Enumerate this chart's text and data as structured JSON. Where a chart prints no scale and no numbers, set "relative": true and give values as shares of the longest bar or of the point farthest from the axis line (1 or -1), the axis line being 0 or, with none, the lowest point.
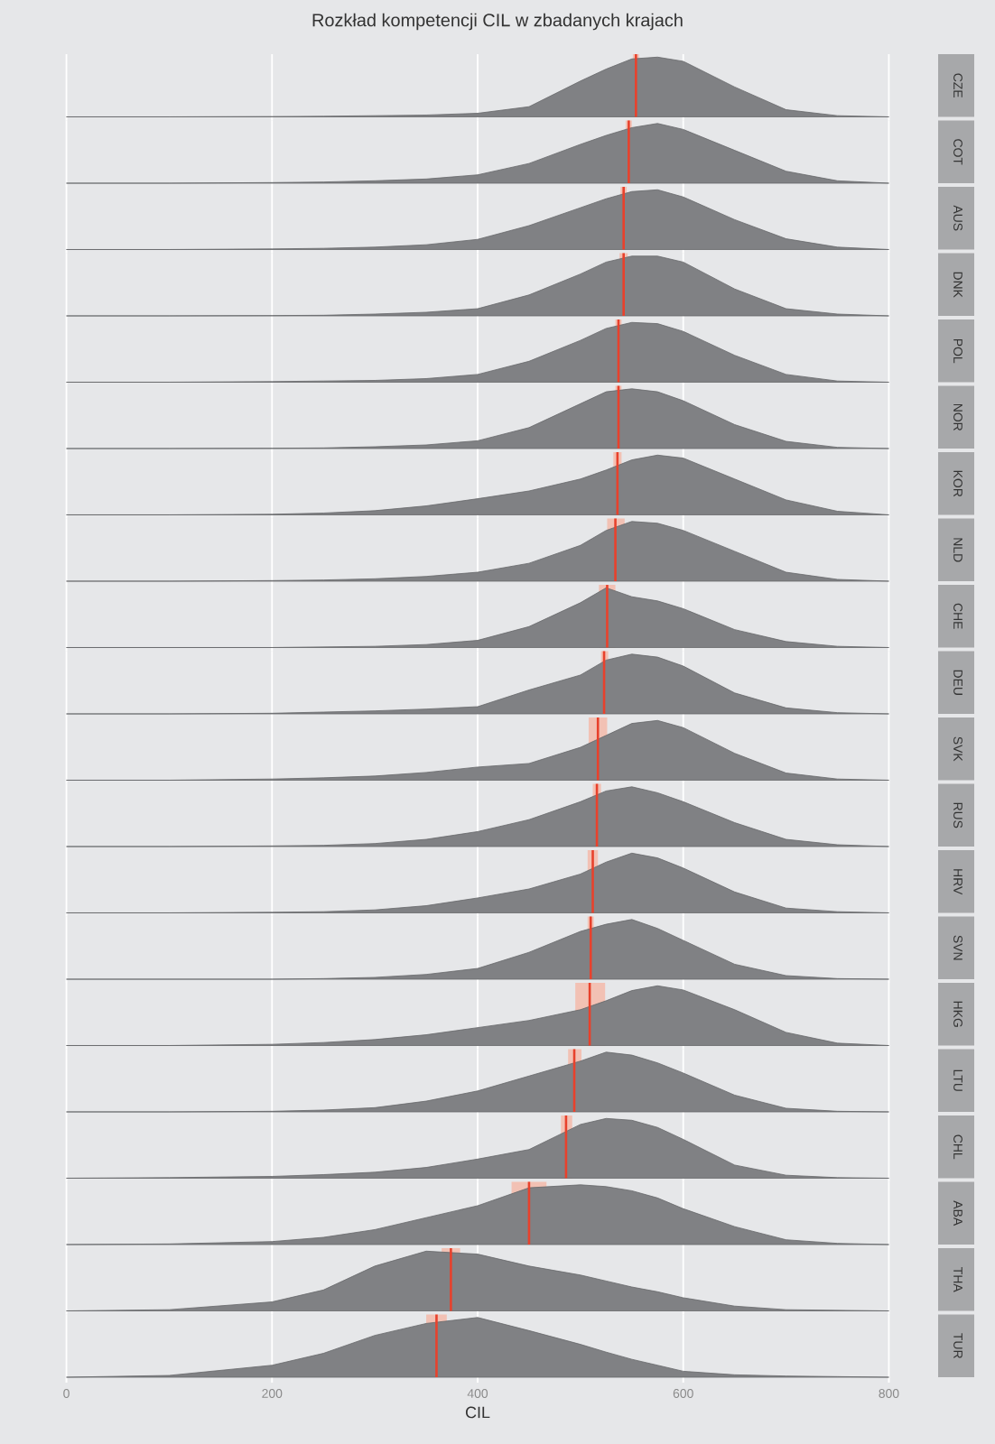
{
  "chart_data": [
    {
      "type": "other",
      "title": "Rozkład kompetencji CIL w zbadanych krajach"
    },
    {
      "type": "area",
      "annotations": [
        "CZE"
      ],
      "relative": true,
      "color": "#808184",
      "grid": "x",
      "tick_labels": false,
      "xlim": [
        -40,
        840
      ],
      "xticks": [
        0,
        200,
        400,
        600,
        800
      ],
      "x": [
        0,
        100,
        200,
        250,
        300,
        350,
        400,
        450,
        500,
        525,
        550,
        575,
        600,
        650,
        700,
        750,
        800
      ],
      "values": [
        0,
        0,
        0.005,
        0.01,
        0.02,
        0.03,
        0.06,
        0.17,
        0.6,
        0.8,
        0.97,
        1,
        0.93,
        0.5,
        0.12,
        0.02,
        0
      ],
      "ref_lines": [
        {
          "axis": "x",
          "value": 554,
          "color": "#e8412c"
        }
      ],
      "bands": [
        {
          "axis": "x",
          "from": 551,
          "to": 557,
          "color": "#f2c1b4"
        }
      ]
    },
    {
      "type": "area",
      "annotations": [
        "COT"
      ],
      "relative": true,
      "color": "#808184",
      "grid": "x",
      "tick_labels": false,
      "xlim": [
        -40,
        840
      ],
      "xticks": [
        0,
        200,
        400,
        600,
        800
      ],
      "x": [
        0,
        100,
        200,
        250,
        300,
        350,
        400,
        450,
        500,
        525,
        550,
        575,
        600,
        650,
        700,
        750,
        800
      ],
      "values": [
        0,
        0,
        0.01,
        0.02,
        0.04,
        0.07,
        0.14,
        0.33,
        0.65,
        0.8,
        0.93,
        1,
        0.9,
        0.55,
        0.2,
        0.04,
        0
      ],
      "ref_lines": [
        {
          "axis": "x",
          "value": 547,
          "color": "#e8412c"
        }
      ],
      "bands": [
        {
          "axis": "x",
          "from": 544,
          "to": 550,
          "color": "#f2c1b4"
        }
      ]
    },
    {
      "type": "area",
      "annotations": [
        "AUS"
      ],
      "relative": true,
      "color": "#808184",
      "grid": "x",
      "tick_labels": false,
      "xlim": [
        -40,
        840
      ],
      "xticks": [
        0,
        200,
        400,
        600,
        800
      ],
      "x": [
        0,
        100,
        200,
        250,
        300,
        350,
        400,
        450,
        500,
        525,
        550,
        575,
        600,
        650,
        700,
        750,
        800
      ],
      "values": [
        0,
        0,
        0.01,
        0.02,
        0.04,
        0.08,
        0.17,
        0.4,
        0.7,
        0.85,
        0.97,
        1,
        0.88,
        0.5,
        0.18,
        0.04,
        0
      ],
      "ref_lines": [
        {
          "axis": "x",
          "value": 542,
          "color": "#e8412c"
        }
      ],
      "bands": [
        {
          "axis": "x",
          "from": 539,
          "to": 545,
          "color": "#f2c1b4"
        }
      ]
    },
    {
      "type": "area",
      "annotations": [
        "DNK"
      ],
      "relative": true,
      "color": "#808184",
      "grid": "x",
      "tick_labels": false,
      "xlim": [
        -40,
        840
      ],
      "xticks": [
        0,
        200,
        400,
        600,
        800
      ],
      "x": [
        0,
        100,
        200,
        250,
        300,
        350,
        400,
        450,
        500,
        525,
        550,
        575,
        600,
        650,
        700,
        750,
        800
      ],
      "values": [
        0,
        0,
        0.005,
        0.01,
        0.03,
        0.06,
        0.12,
        0.35,
        0.7,
        0.9,
        1,
        1,
        0.9,
        0.45,
        0.12,
        0.03,
        0
      ],
      "ref_lines": [
        {
          "axis": "x",
          "value": 542,
          "color": "#e8412c"
        }
      ],
      "bands": [
        {
          "axis": "x",
          "from": 538,
          "to": 546,
          "color": "#f2c1b4"
        }
      ]
    },
    {
      "type": "area",
      "annotations": [
        "POL"
      ],
      "relative": true,
      "color": "#808184",
      "grid": "x",
      "tick_labels": false,
      "xlim": [
        -40,
        840
      ],
      "xticks": [
        0,
        200,
        400,
        600,
        800
      ],
      "x": [
        0,
        100,
        200,
        250,
        300,
        350,
        400,
        450,
        500,
        525,
        550,
        575,
        600,
        650,
        700,
        750,
        800
      ],
      "values": [
        0,
        0,
        0.01,
        0.02,
        0.03,
        0.06,
        0.13,
        0.35,
        0.7,
        0.9,
        1,
        0.98,
        0.85,
        0.45,
        0.13,
        0.02,
        0
      ],
      "ref_lines": [
        {
          "axis": "x",
          "value": 537,
          "color": "#e8412c"
        }
      ],
      "bands": [
        {
          "axis": "x",
          "from": 534,
          "to": 540,
          "color": "#f2c1b4"
        }
      ]
    },
    {
      "type": "area",
      "annotations": [
        "NOR"
      ],
      "relative": true,
      "color": "#808184",
      "grid": "x",
      "tick_labels": false,
      "xlim": [
        -40,
        840
      ],
      "xticks": [
        0,
        200,
        400,
        600,
        800
      ],
      "x": [
        0,
        100,
        200,
        250,
        300,
        350,
        400,
        450,
        500,
        525,
        550,
        575,
        600,
        650,
        700,
        750,
        800
      ],
      "values": [
        0,
        0,
        0.005,
        0.01,
        0.03,
        0.06,
        0.13,
        0.35,
        0.75,
        0.95,
        1,
        0.95,
        0.8,
        0.4,
        0.12,
        0.02,
        0
      ],
      "ref_lines": [
        {
          "axis": "x",
          "value": 537,
          "color": "#e8412c"
        }
      ],
      "bands": [
        {
          "axis": "x",
          "from": 534,
          "to": 540,
          "color": "#f2c1b4"
        }
      ]
    },
    {
      "type": "area",
      "annotations": [
        "KOR"
      ],
      "relative": true,
      "color": "#808184",
      "grid": "x",
      "tick_labels": false,
      "xlim": [
        -40,
        840
      ],
      "xticks": [
        0,
        200,
        400,
        600,
        800
      ],
      "x": [
        0,
        100,
        200,
        250,
        300,
        350,
        400,
        450,
        500,
        525,
        550,
        575,
        600,
        650,
        700,
        750,
        800
      ],
      "values": [
        0,
        0,
        0.01,
        0.03,
        0.07,
        0.15,
        0.27,
        0.4,
        0.6,
        0.75,
        0.92,
        1,
        0.95,
        0.6,
        0.25,
        0.06,
        0
      ],
      "ref_lines": [
        {
          "axis": "x",
          "value": 536,
          "color": "#e8412c"
        }
      ],
      "bands": [
        {
          "axis": "x",
          "from": 532,
          "to": 540,
          "color": "#f2c1b4"
        }
      ]
    },
    {
      "type": "area",
      "annotations": [
        "NLD"
      ],
      "relative": true,
      "color": "#808184",
      "grid": "x",
      "tick_labels": false,
      "xlim": [
        -40,
        840
      ],
      "xticks": [
        0,
        200,
        400,
        600,
        800
      ],
      "x": [
        0,
        100,
        200,
        250,
        300,
        350,
        400,
        450,
        500,
        525,
        550,
        575,
        600,
        650,
        700,
        750,
        800
      ],
      "values": [
        0,
        0,
        0.01,
        0.02,
        0.04,
        0.08,
        0.15,
        0.3,
        0.6,
        0.85,
        1,
        0.97,
        0.85,
        0.5,
        0.15,
        0.03,
        0
      ],
      "ref_lines": [
        {
          "axis": "x",
          "value": 534,
          "color": "#e8412c"
        }
      ],
      "bands": [
        {
          "axis": "x",
          "from": 526,
          "to": 543,
          "color": "#f2c1b4"
        }
      ]
    },
    {
      "type": "area",
      "annotations": [
        "CHE"
      ],
      "relative": true,
      "color": "#808184",
      "grid": "x",
      "tick_labels": false,
      "xlim": [
        -40,
        840
      ],
      "xticks": [
        0,
        200,
        400,
        600,
        800
      ],
      "x": [
        0,
        100,
        200,
        250,
        300,
        350,
        400,
        450,
        500,
        525,
        550,
        575,
        600,
        650,
        700,
        750,
        800
      ],
      "values": [
        0,
        0,
        0,
        0.01,
        0.02,
        0.05,
        0.12,
        0.35,
        0.75,
        1,
        0.85,
        0.78,
        0.65,
        0.3,
        0.1,
        0.02,
        0
      ],
      "ref_lines": [
        {
          "axis": "x",
          "value": 526,
          "color": "#e8412c"
        }
      ],
      "bands": [
        {
          "axis": "x",
          "from": 518,
          "to": 534,
          "color": "#f2c1b4"
        }
      ]
    },
    {
      "type": "area",
      "annotations": [
        "DEU"
      ],
      "relative": true,
      "color": "#808184",
      "grid": "x",
      "tick_labels": false,
      "xlim": [
        -40,
        840
      ],
      "xticks": [
        0,
        200,
        400,
        600,
        800
      ],
      "x": [
        0,
        100,
        200,
        250,
        300,
        350,
        400,
        450,
        500,
        525,
        550,
        575,
        600,
        650,
        700,
        750,
        800
      ],
      "values": [
        0,
        0,
        0.01,
        0.03,
        0.05,
        0.08,
        0.12,
        0.4,
        0.65,
        0.9,
        1,
        0.95,
        0.8,
        0.35,
        0.1,
        0.02,
        0
      ],
      "ref_lines": [
        {
          "axis": "x",
          "value": 523,
          "color": "#e8412c"
        }
      ],
      "bands": [
        {
          "axis": "x",
          "from": 520,
          "to": 527,
          "color": "#f2c1b4"
        }
      ]
    },
    {
      "type": "area",
      "annotations": [
        "SVK"
      ],
      "relative": true,
      "color": "#808184",
      "grid": "x",
      "tick_labels": false,
      "xlim": [
        -40,
        840
      ],
      "xticks": [
        0,
        200,
        400,
        600,
        800
      ],
      "x": [
        0,
        100,
        200,
        250,
        300,
        350,
        400,
        450,
        500,
        525,
        550,
        575,
        600,
        650,
        700,
        750,
        800
      ],
      "values": [
        0,
        0,
        0.02,
        0.04,
        0.07,
        0.13,
        0.22,
        0.28,
        0.55,
        0.75,
        0.95,
        1,
        0.88,
        0.45,
        0.12,
        0.02,
        0
      ],
      "ref_lines": [
        {
          "axis": "x",
          "value": 517,
          "color": "#e8412c"
        }
      ],
      "bands": [
        {
          "axis": "x",
          "from": 508,
          "to": 526,
          "color": "#f2c1b4"
        }
      ]
    },
    {
      "type": "area",
      "annotations": [
        "RUS"
      ],
      "relative": true,
      "color": "#808184",
      "grid": "x",
      "tick_labels": false,
      "xlim": [
        -40,
        840
      ],
      "xticks": [
        0,
        200,
        400,
        600,
        800
      ],
      "x": [
        0,
        100,
        200,
        250,
        300,
        350,
        400,
        450,
        500,
        525,
        550,
        575,
        600,
        650,
        700,
        750,
        800
      ],
      "values": [
        0,
        0,
        0.01,
        0.02,
        0.05,
        0.12,
        0.25,
        0.45,
        0.75,
        0.93,
        1,
        0.9,
        0.75,
        0.4,
        0.12,
        0.03,
        0
      ],
      "ref_lines": [
        {
          "axis": "x",
          "value": 516,
          "color": "#e8412c"
        }
      ],
      "bands": [
        {
          "axis": "x",
          "from": 512,
          "to": 520,
          "color": "#f2c1b4"
        }
      ]
    },
    {
      "type": "area",
      "annotations": [
        "HRV"
      ],
      "relative": true,
      "color": "#808184",
      "grid": "x",
      "tick_labels": false,
      "xlim": [
        -40,
        840
      ],
      "xticks": [
        0,
        200,
        400,
        600,
        800
      ],
      "x": [
        0,
        100,
        200,
        250,
        300,
        350,
        400,
        450,
        500,
        525,
        550,
        575,
        600,
        650,
        700,
        750,
        800
      ],
      "values": [
        0,
        0,
        0.01,
        0.02,
        0.05,
        0.12,
        0.25,
        0.4,
        0.65,
        0.85,
        1,
        0.92,
        0.75,
        0.35,
        0.08,
        0.02,
        0
      ],
      "ref_lines": [
        {
          "axis": "x",
          "value": 512,
          "color": "#e8412c"
        }
      ],
      "bands": [
        {
          "axis": "x",
          "from": 507,
          "to": 517,
          "color": "#f2c1b4"
        }
      ]
    },
    {
      "type": "area",
      "annotations": [
        "SVN"
      ],
      "relative": true,
      "color": "#808184",
      "grid": "x",
      "tick_labels": false,
      "xlim": [
        -40,
        840
      ],
      "xticks": [
        0,
        200,
        400,
        600,
        800
      ],
      "x": [
        0,
        100,
        200,
        250,
        300,
        350,
        400,
        450,
        500,
        525,
        550,
        575,
        600,
        650,
        700,
        750,
        800
      ],
      "values": [
        0,
        0,
        0,
        0.01,
        0.03,
        0.08,
        0.18,
        0.45,
        0.8,
        0.92,
        1,
        0.85,
        0.65,
        0.25,
        0.06,
        0.01,
        0
      ],
      "ref_lines": [
        {
          "axis": "x",
          "value": 510,
          "color": "#e8412c"
        }
      ],
      "bands": [
        {
          "axis": "x",
          "from": 507,
          "to": 513,
          "color": "#f2c1b4"
        }
      ]
    },
    {
      "type": "area",
      "annotations": [
        "HKG"
      ],
      "relative": true,
      "color": "#808184",
      "grid": "x",
      "tick_labels": false,
      "xlim": [
        -40,
        840
      ],
      "xticks": [
        0,
        200,
        400,
        600,
        800
      ],
      "x": [
        0,
        100,
        200,
        250,
        300,
        350,
        400,
        450,
        500,
        525,
        550,
        575,
        600,
        650,
        700,
        750,
        800
      ],
      "values": [
        0,
        0,
        0.02,
        0.05,
        0.1,
        0.18,
        0.3,
        0.42,
        0.6,
        0.75,
        0.92,
        1,
        0.93,
        0.6,
        0.22,
        0.04,
        0
      ],
      "ref_lines": [
        {
          "axis": "x",
          "value": 509,
          "color": "#e8412c"
        }
      ],
      "bands": [
        {
          "axis": "x",
          "from": 495,
          "to": 524,
          "color": "#f2c1b4"
        }
      ]
    },
    {
      "type": "area",
      "annotations": [
        "LTU"
      ],
      "relative": true,
      "color": "#808184",
      "grid": "x",
      "tick_labels": false,
      "xlim": [
        -40,
        840
      ],
      "xticks": [
        0,
        200,
        400,
        600,
        800
      ],
      "x": [
        0,
        100,
        200,
        250,
        300,
        350,
        400,
        450,
        500,
        525,
        550,
        575,
        600,
        650,
        700,
        750,
        800
      ],
      "values": [
        0,
        0,
        0.01,
        0.03,
        0.07,
        0.18,
        0.35,
        0.6,
        0.85,
        1,
        0.95,
        0.82,
        0.65,
        0.28,
        0.06,
        0.01,
        0
      ],
      "ref_lines": [
        {
          "axis": "x",
          "value": 494,
          "color": "#e8412c"
        }
      ],
      "bands": [
        {
          "axis": "x",
          "from": 488,
          "to": 501,
          "color": "#f2c1b4"
        }
      ]
    },
    {
      "type": "area",
      "annotations": [
        "CHL"
      ],
      "relative": true,
      "color": "#808184",
      "grid": "x",
      "tick_labels": false,
      "xlim": [
        -40,
        840
      ],
      "xticks": [
        0,
        200,
        400,
        600,
        800
      ],
      "x": [
        0,
        100,
        200,
        250,
        300,
        350,
        400,
        450,
        500,
        525,
        550,
        575,
        600,
        650,
        700,
        750,
        800
      ],
      "values": [
        0,
        0.01,
        0.03,
        0.06,
        0.1,
        0.18,
        0.32,
        0.48,
        0.9,
        1,
        0.97,
        0.85,
        0.65,
        0.22,
        0.05,
        0.01,
        0
      ],
      "ref_lines": [
        {
          "axis": "x",
          "value": 486,
          "color": "#e8412c"
        }
      ],
      "bands": [
        {
          "axis": "x",
          "from": 481,
          "to": 492,
          "color": "#f2c1b4"
        }
      ]
    },
    {
      "type": "area",
      "annotations": [
        "ABA"
      ],
      "relative": true,
      "color": "#808184",
      "grid": "x",
      "tick_labels": false,
      "xlim": [
        -40,
        840
      ],
      "xticks": [
        0,
        200,
        400,
        600,
        800
      ],
      "x": [
        0,
        100,
        200,
        250,
        300,
        350,
        400,
        450,
        500,
        525,
        550,
        575,
        600,
        650,
        700,
        750,
        800
      ],
      "values": [
        0,
        0.01,
        0.05,
        0.12,
        0.25,
        0.45,
        0.65,
        0.95,
        1,
        0.97,
        0.9,
        0.78,
        0.6,
        0.3,
        0.08,
        0.02,
        0
      ],
      "ref_lines": [
        {
          "axis": "x",
          "value": 450,
          "color": "#e8412c"
        }
      ],
      "bands": [
        {
          "axis": "x",
          "from": 433,
          "to": 467,
          "color": "#f2c1b4"
        }
      ]
    },
    {
      "type": "area",
      "annotations": [
        "THA"
      ],
      "relative": true,
      "color": "#808184",
      "grid": "x",
      "tick_labels": false,
      "xlim": [
        -40,
        840
      ],
      "xticks": [
        0,
        200,
        400,
        600,
        800
      ],
      "x": [
        0,
        100,
        200,
        250,
        300,
        350,
        400,
        450,
        500,
        525,
        550,
        575,
        600,
        650,
        700,
        750,
        800
      ],
      "values": [
        0,
        0.02,
        0.15,
        0.35,
        0.75,
        1,
        0.95,
        0.75,
        0.6,
        0.5,
        0.4,
        0.32,
        0.22,
        0.08,
        0.02,
        0.01,
        0
      ],
      "ref_lines": [
        {
          "axis": "x",
          "value": 374,
          "color": "#e8412c"
        }
      ],
      "bands": [
        {
          "axis": "x",
          "from": 365,
          "to": 383,
          "color": "#f2c1b4"
        }
      ]
    },
    {
      "type": "area",
      "annotations": [
        "TUR"
      ],
      "relative": true,
      "color": "#808184",
      "grid": "x",
      "tick_labels": "x",
      "xlabel": "CIL",
      "xlim": [
        -40,
        840
      ],
      "xticks": [
        0,
        200,
        400,
        600,
        800
      ],
      "x": [
        0,
        100,
        200,
        250,
        300,
        350,
        400,
        450,
        500,
        525,
        550,
        575,
        600,
        650,
        700,
        750,
        800
      ],
      "values": [
        0,
        0.03,
        0.2,
        0.4,
        0.7,
        0.9,
        1,
        0.78,
        0.55,
        0.42,
        0.3,
        0.2,
        0.1,
        0.04,
        0.02,
        0.01,
        0
      ],
      "ref_lines": [
        {
          "axis": "x",
          "value": 360,
          "color": "#e8412c"
        }
      ],
      "bands": [
        {
          "axis": "x",
          "from": 350,
          "to": 370,
          "color": "#f2c1b4"
        }
      ]
    }
  ]
}
